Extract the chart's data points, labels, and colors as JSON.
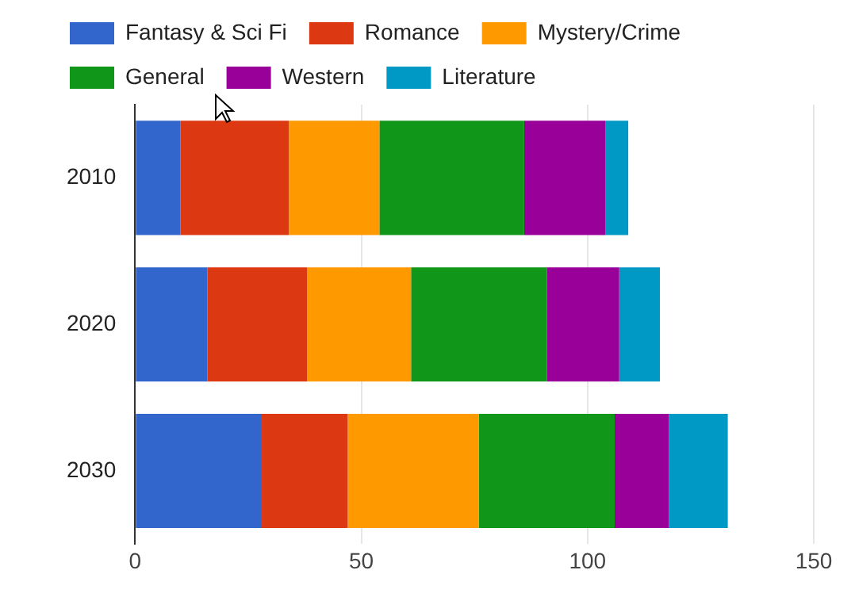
{
  "chart_data": {
    "type": "bar",
    "orientation": "horizontal",
    "stacked": true,
    "categories": [
      "2010",
      "2020",
      "2030"
    ],
    "series": [
      {
        "name": "Fantasy & Sci Fi",
        "color": "#3366cc",
        "values": [
          10,
          16,
          28
        ]
      },
      {
        "name": "Romance",
        "color": "#dc3912",
        "values": [
          24,
          22,
          19
        ]
      },
      {
        "name": "Mystery/Crime",
        "color": "#ff9900",
        "values": [
          20,
          23,
          29
        ]
      },
      {
        "name": "General",
        "color": "#109618",
        "values": [
          32,
          30,
          30
        ]
      },
      {
        "name": "Western",
        "color": "#990099",
        "values": [
          18,
          16,
          12
        ]
      },
      {
        "name": "Literature",
        "color": "#0099c6",
        "values": [
          5,
          9,
          13
        ]
      }
    ],
    "xlim": [
      0,
      150
    ],
    "xticks": [
      0,
      50,
      100,
      150
    ],
    "grid": "x",
    "legend": "top"
  }
}
